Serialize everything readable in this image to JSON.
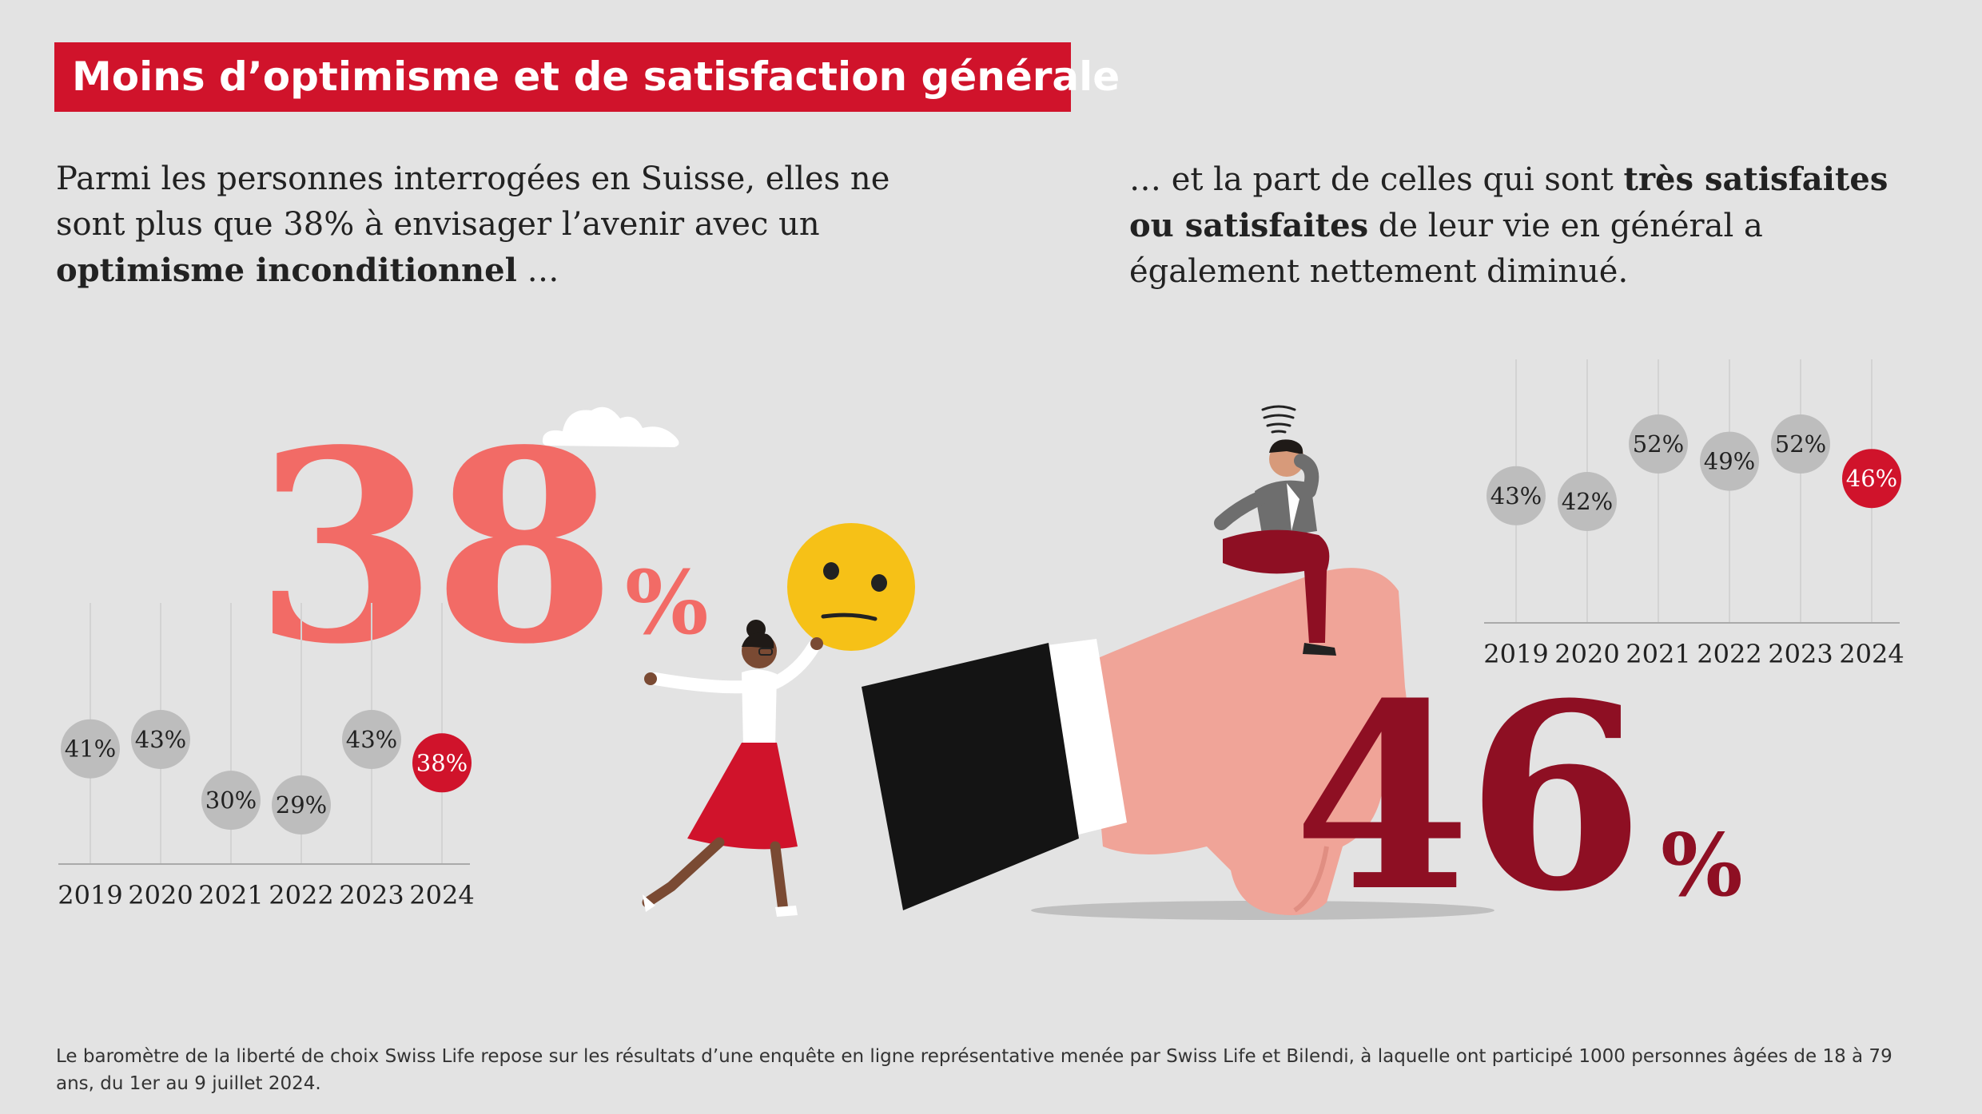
{
  "title": "Moins d’optimisme et de satisfaction générale",
  "intro_left": {
    "pre": "Parmi les personnes interrogées en Suisse, elles ne sont plus que 38% à envisager l’avenir avec un ",
    "bold": "optimisme inconditionnel",
    "post": " …"
  },
  "intro_right": {
    "pre": "… et la part de celles qui sont ",
    "bold": "très satisfaites ou satisfaites",
    "post": " de leur vie en général a également nettement diminué."
  },
  "big_left": {
    "number": "38",
    "unit": "%"
  },
  "big_right": {
    "number": "46",
    "unit": "%"
  },
  "colors": {
    "highlight_bubble": "#d0132b",
    "bubble": "#bdbdbd",
    "big_left": "#f26b66",
    "big_right": "#8e0f23",
    "banner": "#d0132b"
  },
  "icons": [
    "cloud-icon",
    "neutral-face-emoji-icon",
    "woman-walking-icon",
    "thumbs-down-hand-icon",
    "thinking-man-icon"
  ],
  "chart_data": [
    {
      "type": "scatter",
      "categories": [
        "2019",
        "2020",
        "2021",
        "2022",
        "2023",
        "2024"
      ],
      "values": [
        41,
        43,
        30,
        29,
        43,
        38
      ],
      "labels": [
        "41%",
        "43%",
        "30%",
        "29%",
        "43%",
        "38%"
      ],
      "highlight_index": 5
    },
    {
      "type": "scatter",
      "categories": [
        "2019",
        "2020",
        "2021",
        "2022",
        "2023",
        "2024"
      ],
      "values": [
        43,
        42,
        52,
        49,
        52,
        46
      ],
      "labels": [
        "43%",
        "42%",
        "52%",
        "49%",
        "52%",
        "46%"
      ],
      "highlight_index": 5
    }
  ],
  "footnote": "Le baromètre de la liberté de choix Swiss Life repose sur les résultats d’une enquête en ligne représentative menée par Swiss Life et Bilendi, à laquelle ont participé 1000 personnes âgées de 18 à 79 ans, du 1er au 9 juillet 2024."
}
